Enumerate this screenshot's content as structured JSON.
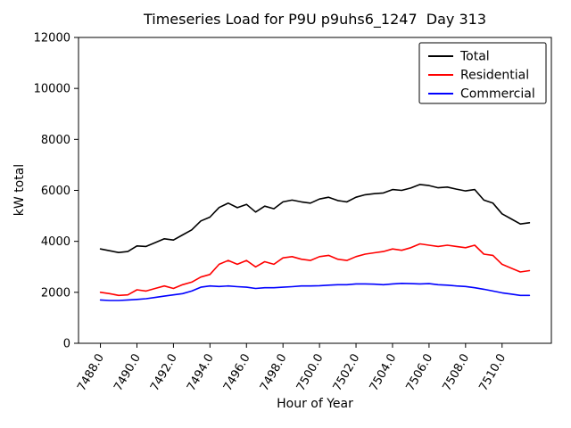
{
  "chart_data": {
    "type": "line",
    "title": "Timeseries Load for P9U p9uhs6_1247  Day 313",
    "xlabel": "Hour of Year",
    "ylabel": "kW total",
    "grid": false,
    "legend_position": "upper right",
    "xlim": [
      7486.8,
      7512.7
    ],
    "ylim": [
      0,
      12000
    ],
    "yticks": [
      0,
      2000,
      4000,
      6000,
      8000,
      10000,
      12000
    ],
    "xticks": [
      7488,
      7490,
      7492,
      7494,
      7496,
      7498,
      7500,
      7502,
      7504,
      7506,
      7508,
      7510
    ],
    "xtick_labels": [
      "7488.0",
      "7490.0",
      "7492.0",
      "7494.0",
      "7496.0",
      "7498.0",
      "7500.0",
      "7502.0",
      "7504.0",
      "7506.0",
      "7508.0",
      "7510.0"
    ],
    "x": [
      7488.0,
      7488.5,
      7489.0,
      7489.5,
      7490.0,
      7490.5,
      7491.0,
      7491.5,
      7492.0,
      7492.5,
      7493.0,
      7493.5,
      7494.0,
      7494.5,
      7495.0,
      7495.5,
      7496.0,
      7496.5,
      7497.0,
      7497.5,
      7498.0,
      7498.5,
      7499.0,
      7499.5,
      7500.0,
      7500.5,
      7501.0,
      7501.5,
      7502.0,
      7502.5,
      7503.0,
      7503.5,
      7504.0,
      7504.5,
      7505.0,
      7505.5,
      7506.0,
      7506.5,
      7507.0,
      7507.5,
      7508.0,
      7508.5,
      7509.0,
      7509.5,
      7510.0,
      7510.5,
      7511.0,
      7511.5
    ],
    "series": [
      {
        "name": "Total",
        "color": "#000000",
        "values": [
          3700,
          3630,
          3560,
          3600,
          3820,
          3800,
          3950,
          4100,
          4050,
          4250,
          4450,
          4800,
          4950,
          5330,
          5500,
          5320,
          5450,
          5150,
          5380,
          5280,
          5550,
          5620,
          5550,
          5500,
          5660,
          5730,
          5600,
          5550,
          5730,
          5830,
          5870,
          5900,
          6030,
          6000,
          6090,
          6230,
          6190,
          6100,
          6130,
          6050,
          5980,
          6030,
          5620,
          5500,
          5080,
          4880,
          4680,
          4730
        ]
      },
      {
        "name": "Residential",
        "color": "#ff0000",
        "values": [
          2000,
          1950,
          1880,
          1900,
          2100,
          2050,
          2150,
          2250,
          2150,
          2300,
          2400,
          2600,
          2700,
          3100,
          3250,
          3100,
          3250,
          3000,
          3200,
          3100,
          3350,
          3400,
          3300,
          3250,
          3400,
          3450,
          3300,
          3250,
          3400,
          3500,
          3550,
          3600,
          3700,
          3650,
          3750,
          3900,
          3850,
          3800,
          3850,
          3800,
          3750,
          3850,
          3500,
          3450,
          3100,
          2950,
          2800,
          2850
        ]
      },
      {
        "name": "Commercial",
        "color": "#0000ff",
        "values": [
          1700,
          1680,
          1680,
          1700,
          1720,
          1750,
          1800,
          1850,
          1900,
          1950,
          2050,
          2200,
          2250,
          2230,
          2250,
          2220,
          2200,
          2150,
          2180,
          2180,
          2200,
          2220,
          2250,
          2250,
          2260,
          2280,
          2300,
          2300,
          2330,
          2330,
          2320,
          2300,
          2330,
          2350,
          2340,
          2330,
          2340,
          2300,
          2280,
          2250,
          2230,
          2180,
          2120,
          2050,
          1980,
          1930,
          1880,
          1880
        ]
      }
    ]
  }
}
